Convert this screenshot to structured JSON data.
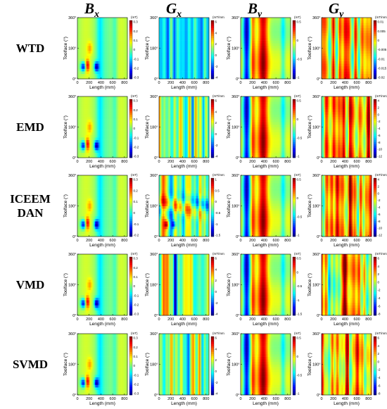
{
  "chart_data": {
    "type": "heatmap",
    "layout": "grid of 5 methods x 4 quantities",
    "columns": [
      {
        "symbol": "B",
        "subscript": "x",
        "unit": "(mT)"
      },
      {
        "symbol": "G",
        "subscript": "x",
        "unit": "(mT/mm)"
      },
      {
        "symbol": "B",
        "subscript": "y",
        "unit": "(mT)"
      },
      {
        "symbol": "G",
        "subscript": "y",
        "unit": "(mT/mm)"
      }
    ],
    "rows": [
      {
        "label_lines": [
          "WTD"
        ]
      },
      {
        "label_lines": [
          "EMD"
        ]
      },
      {
        "label_lines": [
          "ICEEM",
          "DAN"
        ]
      },
      {
        "label_lines": [
          "VMD"
        ]
      },
      {
        "label_lines": [
          "SVMD"
        ]
      }
    ],
    "xlabel": "Length (mm)",
    "ylabel": "Toolface (°)",
    "xticks": [
      "0",
      "200",
      "400",
      "600",
      "800"
    ],
    "xlim": [
      0,
      850
    ],
    "yticks": [
      "0°",
      "180°",
      "360°"
    ],
    "ylim": [
      0,
      360
    ],
    "panels": [
      [
        {
          "ticks": [
            "0.3",
            "0.2",
            "0.1",
            "0",
            "-0.1",
            "-0.2",
            "-0.3"
          ],
          "multiplier": ""
        },
        {
          "ticks": [
            "6",
            "4",
            "2",
            "0",
            "-2",
            "-4"
          ],
          "multiplier": "×10⁻³"
        },
        {
          "ticks": [
            "0.5",
            "0",
            "-0.5",
            "-1"
          ],
          "multiplier": ""
        },
        {
          "ticks": [
            "0.01",
            "0.005",
            "0",
            "-0.005",
            "-0.01",
            "-0.015",
            "-0.02"
          ],
          "multiplier": ""
        }
      ],
      [
        {
          "ticks": [
            "0.3",
            "0.2",
            "0.1",
            "0",
            "-0.1",
            "-0.2",
            "-0.3"
          ],
          "multiplier": ""
        },
        {
          "ticks": [
            "6",
            "4",
            "2",
            "0",
            "-2",
            "-4"
          ],
          "multiplier": "×10⁻³"
        },
        {
          "ticks": [
            "0.5",
            "0",
            "-0.5",
            "-1"
          ],
          "multiplier": ""
        },
        {
          "ticks": [
            "4",
            "2",
            "0",
            "-2",
            "-4",
            "-6",
            "-8",
            "-10",
            "-12"
          ],
          "multiplier": "×10⁻³"
        }
      ],
      [
        {
          "ticks": [
            "0.3",
            "0.2",
            "0.1",
            "0",
            "-0.1",
            "-0.2"
          ],
          "multiplier": ""
        },
        {
          "ticks": [
            "1",
            "0.5",
            "0",
            "-0.5",
            "-1",
            "-1.5"
          ],
          "multiplier": "×10⁻²"
        },
        {
          "ticks": [
            "0.5",
            "0",
            "-0.5",
            "-1"
          ],
          "multiplier": ""
        },
        {
          "ticks": [
            "4",
            "2",
            "0",
            "-2",
            "-4",
            "-6",
            "-8",
            "-10",
            "-12"
          ],
          "multiplier": "×10⁻³"
        }
      ],
      [
        {
          "ticks": [
            "0.3",
            "0.2",
            "0.1",
            "0",
            "-0.1",
            "-0.2",
            "-0.3"
          ],
          "multiplier": ""
        },
        {
          "ticks": [
            "6",
            "4",
            "2",
            "0",
            "-2",
            "-4"
          ],
          "multiplier": "×10⁻³"
        },
        {
          "ticks": [
            "0.5",
            "0",
            "-0.5",
            "-1",
            "-1.5"
          ],
          "multiplier": ""
        },
        {
          "ticks": [
            "6",
            "4",
            "2",
            "0",
            "-2",
            "-4",
            "-6",
            "-8"
          ],
          "multiplier": "×10⁻³"
        }
      ],
      [
        {
          "ticks": [
            "0.3",
            "0.2",
            "0.1",
            "0",
            "-0.1",
            "-0.2",
            "-0.3"
          ],
          "multiplier": ""
        },
        {
          "ticks": [
            "6",
            "4",
            "2",
            "0",
            "-2",
            "-4"
          ],
          "multiplier": "×10⁻³"
        },
        {
          "ticks": [
            "0.5",
            "0",
            "-0.5",
            "-1"
          ],
          "multiplier": ""
        },
        {
          "ticks": [
            "6",
            "4",
            "2",
            "0",
            "-2",
            "-4",
            "-6",
            "-8"
          ],
          "multiplier": "×10⁻³"
        }
      ]
    ],
    "colormap": "jet",
    "colors": {
      "low": "#00008f",
      "mid": "#7fff7f",
      "high": "#800000"
    }
  }
}
